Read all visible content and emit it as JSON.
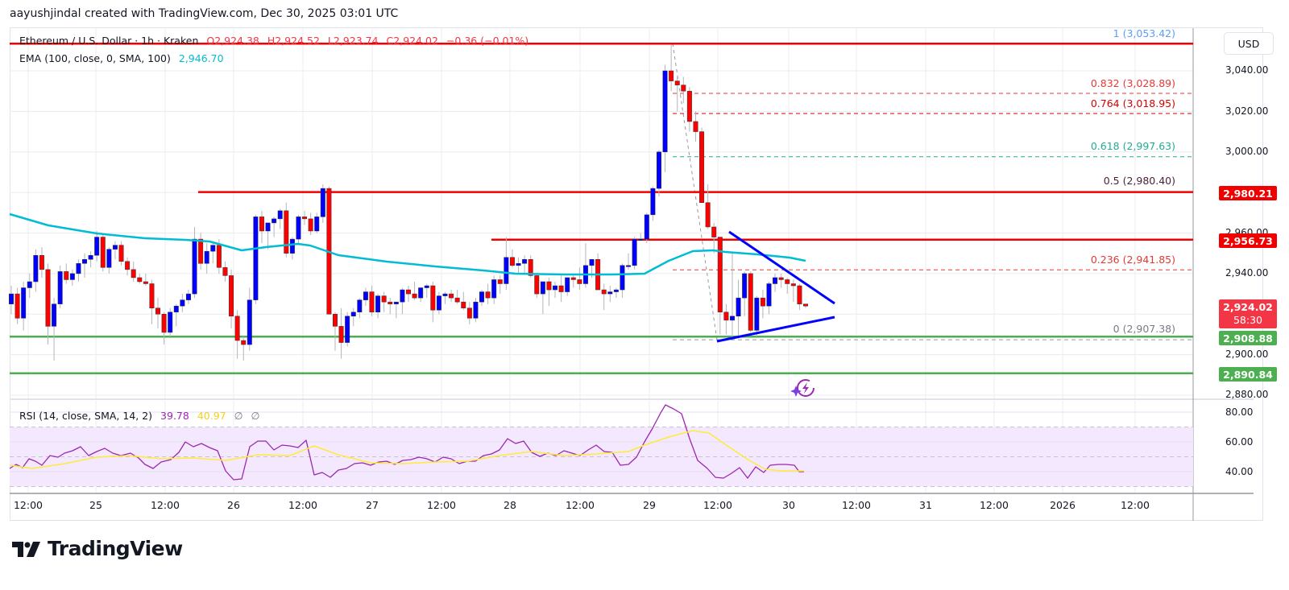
{
  "header": {
    "attribution": "aayushjindal created with TradingView.com, Dec 30, 2025 03:01 UTC"
  },
  "symbol_legend": {
    "title": "Ethereum / U.S. Dollar · 1h · Kraken",
    "open": "O2,924.38",
    "high": "H2,924.52",
    "low": "L2,923.74",
    "close": "C2,924.02",
    "change": "−0.36 (−0.01%)"
  },
  "ema_legend": {
    "label": "EMA (100, close, 0, SMA, 100)",
    "value": "2,946.70",
    "color": "#00bcd4"
  },
  "rsi_legend": {
    "label": "RSI (14, close, SMA, 14, 2)",
    "rsi_value": "39.78",
    "rsi_color": "#9c27b0",
    "sma_value": "40.97",
    "sma_color": "#ffeb3b",
    "extra1": "∅",
    "extra2": "∅"
  },
  "currency_button": "USD",
  "price_axis": {
    "ticks": [
      "3,040.00",
      "3,020.00",
      "3,000.00",
      "2,960.00",
      "2,940.00",
      "2,900.00",
      "2,880.00"
    ],
    "badges": [
      {
        "value": "2,980.21",
        "color": "#f20000"
      },
      {
        "value": "2,956.73",
        "color": "#f20000"
      },
      {
        "value": "2,924.02",
        "sub": "58:30",
        "color": "#f23645"
      },
      {
        "value": "2,908.88",
        "color": "#4caf50"
      },
      {
        "value": "2,890.84",
        "color": "#4caf50"
      }
    ]
  },
  "rsi_axis": {
    "ticks": [
      "80.00",
      "60.00",
      "40.00"
    ]
  },
  "time_axis": {
    "labels": [
      "12:00",
      "25",
      "12:00",
      "26",
      "12:00",
      "27",
      "12:00",
      "28",
      "12:00",
      "29",
      "12:00",
      "30",
      "12:00",
      "31",
      "12:00",
      "2026",
      "12:00"
    ]
  },
  "fibonacci": [
    {
      "label": "1 (3,053.42)",
      "color": "#5b9cf6"
    },
    {
      "label": "0.832 (3,028.89)",
      "color": "#e53935"
    },
    {
      "label": "0.764 (3,018.95)",
      "color": "#d50000"
    },
    {
      "label": "0.618 (2,997.63)",
      "color": "#22ab94"
    },
    {
      "label": "0.5 (2,980.40)",
      "color": "#4a1f3a"
    },
    {
      "label": "0.236 (2,941.85)",
      "color": "#e53935"
    },
    {
      "label": "0 (2,907.38)",
      "color": "#787b86"
    }
  ],
  "logo": {
    "text": "TradingView"
  },
  "chart_data": {
    "type": "candlestick",
    "title": "Ethereum / U.S. Dollar · 1h · Kraken",
    "xlabel": "",
    "ylabel": "USD",
    "ylim": [
      2870,
      3060
    ],
    "grid": true,
    "x_ticks": [
      "Dec 24 12:00",
      "25",
      "12:00",
      "26",
      "12:00",
      "27",
      "12:00",
      "28",
      "12:00",
      "29",
      "12:00",
      "30",
      "12:00",
      "31",
      "12:00",
      "2026",
      "12:00"
    ],
    "last_ohlc": {
      "open": 2924.38,
      "high": 2924.52,
      "low": 2923.74,
      "close": 2924.02,
      "change": -0.36,
      "change_pct": -0.01
    },
    "horizontal_levels": [
      {
        "name": "resistance",
        "price": 3053.42,
        "color": "#f20000"
      },
      {
        "name": "resistance",
        "price": 2980.21,
        "color": "#f20000"
      },
      {
        "name": "resistance",
        "price": 2956.73,
        "color": "#f20000"
      },
      {
        "name": "support",
        "price": 2908.88,
        "color": "#4caf50"
      },
      {
        "name": "support",
        "price": 2890.84,
        "color": "#4caf50"
      }
    ],
    "fib_retracement": [
      {
        "level": 1,
        "price": 3053.42
      },
      {
        "level": 0.832,
        "price": 3028.89
      },
      {
        "level": 0.764,
        "price": 3018.95
      },
      {
        "level": 0.618,
        "price": 2997.63
      },
      {
        "level": 0.5,
        "price": 2980.4
      },
      {
        "level": 0.236,
        "price": 2941.85
      },
      {
        "level": 0,
        "price": 2907.38
      }
    ],
    "triangle": {
      "upper": [
        [
          2962,
          "Dec 29 14:00"
        ],
        [
          2928,
          "Dec 30 10:00"
        ]
      ],
      "lower": [
        [
          2907,
          "Dec 29 12:00"
        ],
        [
          2919,
          "Dec 30 10:00"
        ]
      ]
    },
    "ema100": {
      "last": 2946.7
    },
    "candles": [
      [
        2925,
        2934,
        2920,
        2930
      ],
      [
        2930,
        2933,
        2915,
        2918
      ],
      [
        2918,
        2936,
        2912,
        2933
      ],
      [
        2933,
        2940,
        2928,
        2936
      ],
      [
        2936,
        2952,
        2931,
        2949
      ],
      [
        2949,
        2953,
        2938,
        2942
      ],
      [
        2942,
        2945,
        2905,
        2914
      ],
      [
        2914,
        2928,
        2897,
        2925
      ],
      [
        2925,
        2944,
        2923,
        2941
      ],
      [
        2941,
        2945,
        2935,
        2937
      ],
      [
        2937,
        2942,
        2934,
        2940
      ],
      [
        2940,
        2947,
        2936,
        2945
      ],
      [
        2945,
        2950,
        2938,
        2947
      ],
      [
        2947,
        2951,
        2943,
        2949
      ],
      [
        2949,
        2961,
        2946,
        2958
      ],
      [
        2958,
        2960,
        2941,
        2943
      ],
      [
        2943,
        2953,
        2940,
        2952
      ],
      [
        2952,
        2956,
        2947,
        2954
      ],
      [
        2954,
        2956,
        2944,
        2946
      ],
      [
        2946,
        2948,
        2939,
        2942
      ],
      [
        2942,
        2946,
        2936,
        2938
      ],
      [
        2938,
        2940,
        2935,
        2936
      ],
      [
        2936,
        2940,
        2934,
        2935
      ],
      [
        2935,
        2937,
        2915,
        2923
      ],
      [
        2923,
        2928,
        2913,
        2920
      ],
      [
        2920,
        2921,
        2905,
        2911
      ],
      [
        2911,
        2923,
        2909,
        2921
      ],
      [
        2921,
        2925,
        2914,
        2924
      ],
      [
        2924,
        2930,
        2921,
        2927
      ],
      [
        2927,
        2932,
        2925,
        2930
      ],
      [
        2930,
        2963,
        2928,
        2957
      ],
      [
        2957,
        2960,
        2942,
        2945
      ],
      [
        2945,
        2955,
        2940,
        2951
      ],
      [
        2951,
        2956,
        2945,
        2954
      ],
      [
        2954,
        2957,
        2940,
        2943
      ],
      [
        2943,
        2946,
        2936,
        2939
      ],
      [
        2939,
        2942,
        2913,
        2919
      ],
      [
        2919,
        2922,
        2898,
        2907
      ],
      [
        2907,
        2909,
        2897,
        2905
      ],
      [
        2905,
        2933,
        2902,
        2927
      ],
      [
        2927,
        2969,
        2925,
        2968
      ],
      [
        2968,
        2971,
        2955,
        2961
      ],
      [
        2961,
        2965,
        2952,
        2965
      ],
      [
        2965,
        2968,
        2958,
        2967
      ],
      [
        2967,
        2972,
        2962,
        2971
      ],
      [
        2971,
        2975,
        2948,
        2950
      ],
      [
        2950,
        2958,
        2947,
        2957
      ],
      [
        2957,
        2969,
        2954,
        2968
      ],
      [
        2968,
        2971,
        2964,
        2967
      ],
      [
        2967,
        2970,
        2959,
        2961
      ],
      [
        2961,
        2970,
        2960,
        2968
      ],
      [
        2968,
        2984,
        2965,
        2982
      ],
      [
        2982,
        2983,
        2920,
        2920
      ],
      [
        2920,
        2921,
        2902,
        2914
      ],
      [
        2914,
        2923,
        2898,
        2906
      ],
      [
        2906,
        2921,
        2904,
        2919
      ],
      [
        2919,
        2923,
        2914,
        2921
      ],
      [
        2921,
        2928,
        2918,
        2927
      ],
      [
        2927,
        2933,
        2924,
        2931
      ],
      [
        2931,
        2934,
        2919,
        2921
      ],
      [
        2921,
        2930,
        2918,
        2929
      ],
      [
        2929,
        2931,
        2921,
        2926
      ],
      [
        2926,
        2928,
        2920,
        2925
      ],
      [
        2925,
        2926,
        2918,
        2926
      ],
      [
        2926,
        2933,
        2920,
        2932
      ],
      [
        2932,
        2934,
        2926,
        2930
      ],
      [
        2930,
        2936,
        2927,
        2928
      ],
      [
        2928,
        2932,
        2926,
        2933
      ],
      [
        2933,
        2935,
        2928,
        2934
      ],
      [
        2934,
        2936,
        2916,
        2922
      ],
      [
        2922,
        2931,
        2920,
        2929
      ],
      [
        2929,
        2931,
        2925,
        2930
      ],
      [
        2930,
        2932,
        2926,
        2928
      ],
      [
        2928,
        2932,
        2925,
        2926
      ],
      [
        2926,
        2931,
        2922,
        2923
      ],
      [
        2923,
        2926,
        2915,
        2918
      ],
      [
        2918,
        2928,
        2916,
        2926
      ],
      [
        2926,
        2932,
        2924,
        2931
      ],
      [
        2931,
        2935,
        2925,
        2928
      ],
      [
        2928,
        2939,
        2925,
        2937
      ],
      [
        2937,
        2939,
        2930,
        2935
      ],
      [
        2935,
        2958,
        2932,
        2948
      ],
      [
        2948,
        2952,
        2943,
        2944
      ],
      [
        2944,
        2948,
        2940,
        2945
      ],
      [
        2945,
        2949,
        2940,
        2947
      ],
      [
        2947,
        2949,
        2938,
        2939
      ],
      [
        2939,
        2940,
        2928,
        2930
      ],
      [
        2930,
        2935,
        2920,
        2936
      ],
      [
        2936,
        2938,
        2924,
        2932
      ],
      [
        2932,
        2936,
        2928,
        2934
      ],
      [
        2934,
        2939,
        2926,
        2931
      ],
      [
        2931,
        2938,
        2929,
        2938
      ],
      [
        2938,
        2939,
        2933,
        2937
      ],
      [
        2937,
        2943,
        2932,
        2935
      ],
      [
        2935,
        2955,
        2933,
        2944
      ],
      [
        2944,
        2946,
        2938,
        2947
      ],
      [
        2947,
        2950,
        2935,
        2932
      ],
      [
        2932,
        2935,
        2922,
        2930
      ],
      [
        2930,
        2934,
        2926,
        2931
      ],
      [
        2931,
        2933,
        2928,
        2932
      ],
      [
        2932,
        2945,
        2928,
        2944
      ],
      [
        2944,
        2950,
        2942,
        2944
      ],
      [
        2944,
        2958,
        2942,
        2957
      ],
      [
        2957,
        2960,
        2956,
        2957
      ],
      [
        2957,
        2970,
        2955,
        2969
      ],
      [
        2969,
        2983,
        2966,
        2982
      ],
      [
        2982,
        3001,
        2978,
        3000
      ],
      [
        3000,
        3043,
        2990,
        3040
      ],
      [
        3040,
        3053,
        3030,
        3035
      ],
      [
        3035,
        3037,
        3020,
        3033
      ],
      [
        3033,
        3037,
        3024,
        3030
      ],
      [
        3030,
        3032,
        3010,
        3015
      ],
      [
        3015,
        3020,
        3005,
        3010
      ],
      [
        3010,
        3012,
        2978,
        2975
      ],
      [
        2975,
        2984,
        2962,
        2963
      ],
      [
        2963,
        2965,
        2950,
        2958
      ],
      [
        2958,
        2957,
        2910,
        2921
      ],
      [
        2921,
        2925,
        2910,
        2917
      ],
      [
        2917,
        2950,
        2907,
        2919
      ],
      [
        2919,
        2937,
        2908,
        2928
      ],
      [
        2928,
        2941,
        2919,
        2940
      ],
      [
        2940,
        2941,
        2911,
        2912
      ],
      [
        2912,
        2929,
        2909,
        2928
      ],
      [
        2928,
        2932,
        2918,
        2924
      ],
      [
        2924,
        2936,
        2920,
        2935
      ],
      [
        2935,
        2940,
        2931,
        2938
      ],
      [
        2938,
        2940,
        2933,
        2937
      ],
      [
        2937,
        2938,
        2930,
        2935
      ],
      [
        2935,
        2937,
        2926,
        2934
      ],
      [
        2934,
        2935,
        2922,
        2925
      ],
      [
        2925,
        2925,
        2923,
        2924
      ]
    ],
    "rsi": {
      "name": "RSI (14, close, SMA, 14, 2)",
      "last": 39.78,
      "sma_last": 40.97,
      "ylim": [
        28,
        87
      ],
      "band": [
        30,
        70
      ],
      "midline": 50
    }
  }
}
